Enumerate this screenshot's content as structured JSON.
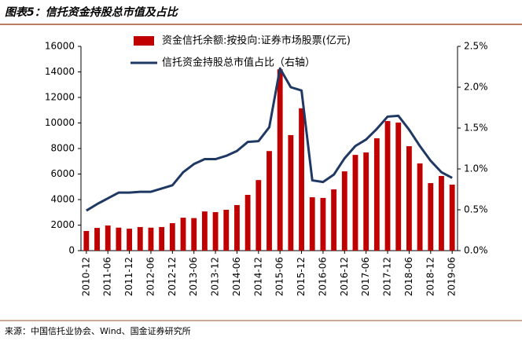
{
  "title": "图表5：信托资金持股总市值及占比",
  "source": "来源：中国信托业协会、Wind、国金证券研究所",
  "chart_data": {
    "type": "bar_line",
    "categories": [
      "2010-12",
      null,
      "2011-06",
      null,
      "2011-12",
      null,
      "2012-06",
      null,
      "2012-12",
      null,
      "2013-06",
      null,
      "2013-12",
      null,
      "2014-06",
      null,
      "2014-12",
      null,
      "2015-06",
      null,
      "2015-12",
      null,
      "2016-06",
      null,
      "2016-12",
      null,
      "2017-06",
      null,
      "2017-12",
      null,
      "2018-06",
      null,
      "2018-12",
      null,
      "2019-06"
    ],
    "series": [
      {
        "name": "资金信托余额:按投向:证券市场股票(亿元)",
        "type": "bar",
        "color": "#c00000",
        "values": [
          1540,
          1780,
          1970,
          1800,
          1720,
          1850,
          1800,
          1850,
          2150,
          2580,
          2550,
          3070,
          3020,
          3200,
          3570,
          4370,
          5530,
          7800,
          14200,
          9050,
          11150,
          4180,
          4130,
          4800,
          6210,
          7500,
          7690,
          8800,
          10150,
          10030,
          8180,
          6830,
          5290,
          5850,
          5170
        ]
      },
      {
        "name": "信托资金持股总市值占比（右轴）",
        "type": "line",
        "color": "#1f3864",
        "axis": "y2",
        "values": [
          0.49,
          0.57,
          0.64,
          0.71,
          0.71,
          0.72,
          0.72,
          0.76,
          0.8,
          0.96,
          1.06,
          1.12,
          1.12,
          1.16,
          1.22,
          1.33,
          1.34,
          1.51,
          2.23,
          2.0,
          1.96,
          0.86,
          0.84,
          0.93,
          1.13,
          1.28,
          1.36,
          1.49,
          1.64,
          1.65,
          1.48,
          1.28,
          1.1,
          0.96,
          0.89
        ]
      }
    ],
    "ylim": [
      0,
      16000
    ],
    "yticks": [
      0,
      2000,
      4000,
      6000,
      8000,
      10000,
      12000,
      14000,
      16000
    ],
    "y2lim": [
      0,
      2.5
    ],
    "y2ticks": [
      {
        "value": 0,
        "label": "0.0%"
      },
      {
        "value": 0.5,
        "label": "0.5%"
      },
      {
        "value": 1.0,
        "label": "1.0%"
      },
      {
        "value": 1.5,
        "label": "1.5%"
      },
      {
        "value": 2.0,
        "label": "2.0%"
      },
      {
        "value": 2.5,
        "label": "2.5%"
      }
    ],
    "legend": "top"
  }
}
